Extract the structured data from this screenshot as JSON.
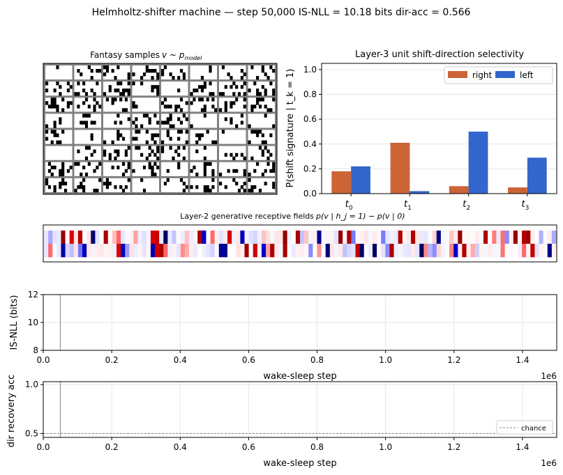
{
  "suptitle": "Helmholtz-shifter machine — step     50,000    IS-NLL = 10.18 bits    dir-acc = 0.566",
  "fantasy": {
    "title": "Fantasy samples",
    "title_math": "v ~ p",
    "title_sub": "model",
    "grid": {
      "rows": 8,
      "cols": 8,
      "pattern_rows": 4,
      "pattern_cols": 10
    },
    "colors": {
      "frame": "#808080",
      "on": "#000000",
      "off": "#ffffff"
    }
  },
  "fields": {
    "title_text": "Layer-2 generative receptive fields",
    "title_math": "p(v | h_j = 1) − p(v | 0)",
    "rows": 2,
    "cols": 120,
    "colormap": "seismic"
  },
  "chart_data": [
    {
      "type": "bar",
      "title": "Layer-3 unit shift-direction selectivity",
      "ylabel": "P(shift signature | t_k = 1)",
      "categories": [
        "t0",
        "t1",
        "t2",
        "t3"
      ],
      "series": [
        {
          "name": "right",
          "color": "#cd6436",
          "values": [
            0.18,
            0.41,
            0.06,
            0.05
          ]
        },
        {
          "name": "left",
          "color": "#3366cc",
          "values": [
            0.22,
            0.02,
            0.5,
            0.29
          ]
        }
      ],
      "ylim": [
        0,
        1.05
      ],
      "yticks": [
        "0.0",
        "0.2",
        "0.4",
        "0.6",
        "0.8",
        "1.0"
      ],
      "grid": true,
      "legend": "top-right"
    },
    {
      "type": "line",
      "title": "",
      "xlabel": "wake-sleep step",
      "ylabel": "IS-NLL  (bits)",
      "xlim": [
        0,
        1500000
      ],
      "ylim": [
        8,
        12
      ],
      "xticks": [
        "0.0",
        "0.2",
        "0.4",
        "0.6",
        "0.8",
        "1.0",
        "1.2",
        "1.4"
      ],
      "yticks": [
        "8",
        "10",
        "12"
      ],
      "offset_label": "1e6",
      "current_step": 50000,
      "series": [],
      "grid": true
    },
    {
      "type": "line",
      "title": "",
      "xlabel": "wake-sleep step",
      "ylabel": "dir recovery acc",
      "xlim": [
        0,
        1500000
      ],
      "ylim": [
        0.46,
        1.03
      ],
      "xticks": [
        "0.0",
        "0.2",
        "0.4",
        "0.6",
        "0.8",
        "1.0",
        "1.2",
        "1.4"
      ],
      "yticks": [
        "0.5",
        "1.0"
      ],
      "offset_label": "1e6",
      "current_step": 50000,
      "chance_level": 0.5,
      "legend_label": "chance",
      "legend": "bottom-right",
      "grid": true
    }
  ]
}
